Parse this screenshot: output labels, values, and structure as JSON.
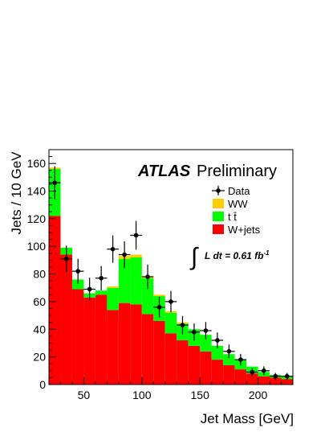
{
  "chart_data": {
    "type": "bar",
    "stacked": true,
    "xlabel": "Jet Mass [GeV]",
    "ylabel": "Jets / 10 GeV",
    "xlim": [
      20,
      230
    ],
    "ylim": [
      0,
      170
    ],
    "x_ticks": [
      50,
      100,
      150,
      200
    ],
    "y_ticks": [
      0,
      20,
      40,
      60,
      80,
      100,
      120,
      140,
      160
    ],
    "bin_edges": [
      20,
      30,
      40,
      50,
      60,
      70,
      80,
      90,
      100,
      110,
      120,
      130,
      140,
      150,
      160,
      170,
      180,
      190,
      200,
      210,
      220,
      230
    ],
    "experiment": "ATLAS",
    "label": "Preliminary",
    "luminosity": {
      "integral": "∫",
      "text": "L dt = 0.61 fb",
      "exponent": "-1"
    },
    "legend_position": "top-right",
    "series": [
      {
        "name": "W+jets",
        "color": "#ff0000",
        "values": [
          122,
          94,
          69,
          63,
          65,
          54,
          59,
          58,
          51,
          46,
          37,
          32,
          28,
          24,
          18,
          14,
          11,
          8,
          6,
          5,
          4
        ]
      },
      {
        "name": "t t̄",
        "color": "#00ff00",
        "values": [
          34,
          5,
          7,
          3,
          3,
          16,
          32,
          34,
          26,
          18,
          15,
          12,
          12,
          12,
          10,
          8,
          7,
          5,
          3,
          2,
          2
        ]
      },
      {
        "name": "WW",
        "color": "#ffcc00",
        "values": [
          1,
          0,
          0,
          0,
          0,
          1,
          2,
          2,
          1,
          1,
          1,
          1,
          0,
          0,
          0,
          0,
          0,
          0,
          0,
          0,
          0
        ]
      }
    ],
    "data": {
      "name": "Data",
      "x": [
        25,
        35,
        45,
        55,
        65,
        75,
        85,
        95,
        105,
        115,
        125,
        135,
        145,
        155,
        165,
        175,
        185,
        195,
        205,
        215,
        225
      ],
      "y": [
        146,
        91,
        82,
        69,
        77,
        98,
        94,
        108,
        78,
        56,
        60,
        43,
        38,
        39,
        32,
        24,
        18,
        9,
        10,
        6,
        6
      ],
      "err": [
        12,
        9.5,
        9,
        8.3,
        8.8,
        9.9,
        9.7,
        10.4,
        8.8,
        7.5,
        7.7,
        6.6,
        6.2,
        6.2,
        5.7,
        4.9,
        4.2,
        3,
        3.2,
        2.4,
        2.4
      ]
    }
  }
}
